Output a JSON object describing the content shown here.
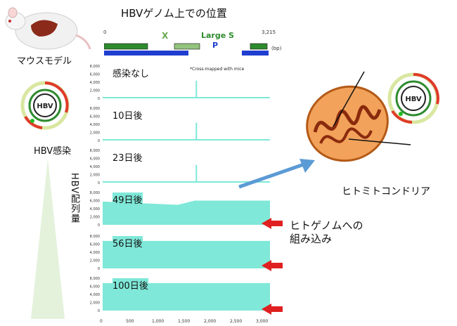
{
  "title": "HBVゲノム上での位置",
  "mouse_label": "マウスモデル",
  "infection_label": "HBV感染",
  "amount_label": "HBV配列量",
  "mito_label": "ヒトミトコンドリア",
  "integration_label": [
    "ヒトゲノムへの",
    "組み込み"
  ],
  "cross_map_note": "*Cross-mapped with mice",
  "genome": {
    "start": "0",
    "end": "3,215",
    "unit": "(bp)",
    "x_gene": "X",
    "large_s": "Large S",
    "p_gene": "P"
  },
  "hbv_circle_label": "HBV",
  "x_axis_ticks": [
    "0",
    "500",
    "1,000",
    "1,500",
    "2,000",
    "2,500",
    "3,000"
  ],
  "y_axis_ticks": [
    "0",
    "2,000",
    "4,000",
    "6,000",
    "8,000"
  ],
  "samples": [
    {
      "label": "感染なし"
    },
    {
      "label": "10日後"
    },
    {
      "label": "23日後"
    },
    {
      "label": "49日後"
    },
    {
      "label": "56日後"
    },
    {
      "label": "100日後"
    }
  ],
  "colors": {
    "coverage": "#7fe8d8",
    "large_s_text": "#2e8b2e",
    "x_text": "#6aa84f",
    "p_text": "#1f3ecf",
    "red_arrow": "#e02020",
    "blue_arrow": "#5b9bd5"
  }
}
